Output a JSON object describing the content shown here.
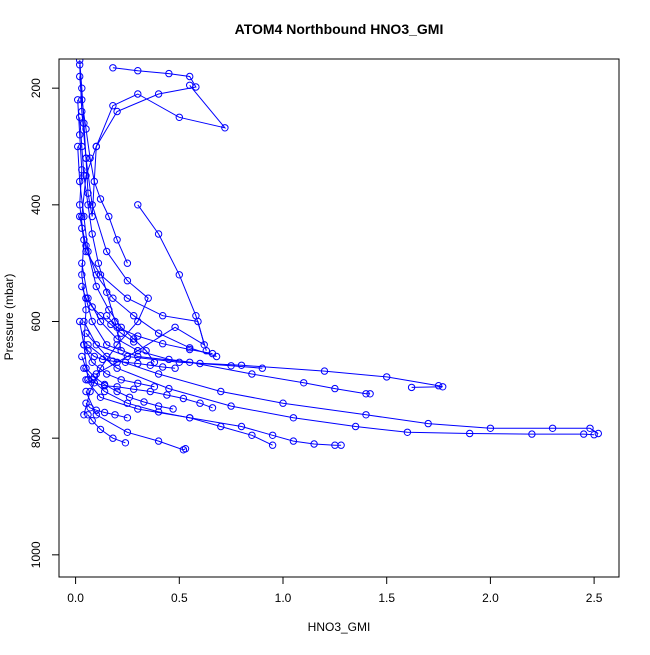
{
  "chart_data": {
    "type": "scatter",
    "title": "ATOM4 Northbound HNO3_GMI",
    "xlabel": "HNO3_GMI",
    "ylabel": "Pressure (mbar)",
    "xlim": [
      -0.08,
      2.62
    ],
    "ylim": [
      1038,
      150
    ],
    "y_reversed": true,
    "x_ticks": [
      "0.0",
      "0.5",
      "1.0",
      "1.5",
      "2.0",
      "2.5"
    ],
    "x_tick_values": [
      0,
      0.5,
      1.0,
      1.5,
      2.0,
      2.5
    ],
    "y_ticks": [
      "200",
      "400",
      "600",
      "800",
      "1000"
    ],
    "y_tick_values": [
      200,
      400,
      600,
      800,
      1000
    ],
    "marker": "open-circle",
    "line_style": "connected",
    "color": "#0000ff",
    "series": [
      {
        "x": [
          0.02,
          0.03,
          0.04,
          0.05,
          0.06,
          0.08,
          0.1,
          0.18,
          0.3,
          0.5,
          0.72,
          0.55
        ],
        "y": [
          152,
          200,
          260,
          320,
          380,
          420,
          300,
          230,
          210,
          250,
          268,
          195
        ]
      },
      {
        "x": [
          0.18,
          0.3,
          0.45,
          0.55,
          0.58,
          0.4,
          0.2,
          0.1,
          0.05,
          0.03
        ],
        "y": [
          165,
          170,
          175,
          180,
          198,
          210,
          240,
          300,
          350,
          420
        ]
      },
      {
        "x": [
          0.03,
          0.05,
          0.12,
          0.25,
          0.42,
          0.59,
          0.62,
          0.48,
          0.3,
          0.2,
          0.1
        ],
        "y": [
          440,
          480,
          520,
          560,
          590,
          600,
          640,
          610,
          650,
          670,
          690
        ]
      },
      {
        "x": [
          0.05,
          0.08,
          0.15,
          0.3,
          0.55,
          0.85,
          1.1,
          1.25,
          1.4,
          1.42
        ],
        "y": [
          560,
          600,
          640,
          660,
          670,
          690,
          705,
          715,
          724,
          724
        ]
      },
      {
        "x": [
          0.04,
          0.1,
          0.25,
          0.5,
          0.8,
          1.2,
          1.5,
          1.75,
          1.77,
          1.62
        ],
        "y": [
          600,
          640,
          660,
          670,
          675,
          685,
          695,
          710,
          712,
          713
        ]
      },
      {
        "x": [
          0.05,
          0.15,
          0.4,
          0.7,
          1.0,
          1.4,
          1.7,
          2.0,
          2.3,
          2.48,
          2.52
        ],
        "y": [
          620,
          660,
          690,
          720,
          740,
          760,
          775,
          783,
          783,
          783,
          792
        ]
      },
      {
        "x": [
          0.06,
          0.2,
          0.45,
          0.75,
          1.05,
          1.35,
          1.6,
          1.9,
          2.2,
          2.45,
          2.5
        ],
        "y": [
          640,
          680,
          715,
          745,
          765,
          780,
          790,
          792,
          793,
          793,
          794
        ]
      },
      {
        "x": [
          0.05,
          0.12,
          0.3,
          0.55,
          0.8,
          0.95,
          1.05,
          1.15,
          1.25,
          1.28
        ],
        "y": [
          700,
          730,
          750,
          765,
          780,
          795,
          805,
          810,
          812,
          812
        ]
      },
      {
        "x": [
          0.05,
          0.1,
          0.25,
          0.4,
          0.52,
          0.53
        ],
        "y": [
          720,
          760,
          790,
          805,
          820,
          818
        ]
      },
      {
        "x": [
          0.04,
          0.08,
          0.14,
          0.25,
          0.4,
          0.55,
          0.7,
          0.85,
          0.95
        ],
        "y": [
          680,
          700,
          720,
          740,
          755,
          765,
          780,
          795,
          812
        ]
      },
      {
        "x": [
          0.02,
          0.03,
          0.05,
          0.08,
          0.15,
          0.25,
          0.35,
          0.3,
          0.2,
          0.12,
          0.07,
          0.04
        ],
        "y": [
          160,
          240,
          320,
          400,
          480,
          530,
          560,
          600,
          640,
          680,
          720,
          760
        ]
      },
      {
        "x": [
          0.01,
          0.02,
          0.04,
          0.06,
          0.1,
          0.16,
          0.22,
          0.28,
          0.34,
          0.38
        ],
        "y": [
          300,
          360,
          420,
          480,
          540,
          580,
          610,
          630,
          650,
          670
        ]
      },
      {
        "x": [
          0.03,
          0.06,
          0.12,
          0.2,
          0.3,
          0.45,
          0.6,
          0.75,
          0.9
        ],
        "y": [
          500,
          560,
          600,
          630,
          650,
          665,
          672,
          676,
          680
        ]
      },
      {
        "x": [
          0.02,
          0.05,
          0.1,
          0.18,
          0.28,
          0.4,
          0.55,
          0.68
        ],
        "y": [
          420,
          470,
          520,
          560,
          590,
          620,
          645,
          660
        ]
      },
      {
        "x": [
          0.02,
          0.03,
          0.05,
          0.07,
          0.09,
          0.12,
          0.16,
          0.2,
          0.25
        ],
        "y": [
          180,
          220,
          270,
          320,
          360,
          390,
          420,
          460,
          500
        ]
      },
      {
        "x": [
          0.04,
          0.06,
          0.09,
          0.13,
          0.18,
          0.24,
          0.3,
          0.36,
          0.42,
          0.48
        ],
        "y": [
          640,
          650,
          660,
          665,
          668,
          670,
          672,
          675,
          678,
          680
        ]
      },
      {
        "x": [
          0.06,
          0.09,
          0.14,
          0.2,
          0.28,
          0.36,
          0.44,
          0.52,
          0.6,
          0.66
        ],
        "y": [
          700,
          705,
          710,
          712,
          716,
          720,
          726,
          732,
          740,
          748
        ]
      },
      {
        "x": [
          0.03,
          0.05,
          0.08,
          0.12,
          0.17,
          0.22,
          0.28
        ],
        "y": [
          540,
          560,
          575,
          590,
          605,
          620,
          635
        ]
      },
      {
        "x": [
          0.01,
          0.02,
          0.03,
          0.02,
          0.04,
          0.03,
          0.05,
          0.04,
          0.06
        ],
        "y": [
          220,
          280,
          340,
          400,
          460,
          520,
          580,
          640,
          700
        ]
      },
      {
        "x": [
          0.02,
          0.04,
          0.08,
          0.15,
          0.22,
          0.3,
          0.38
        ],
        "y": [
          600,
          640,
          670,
          690,
          700,
          706,
          712
        ]
      },
      {
        "x": [
          0.03,
          0.05,
          0.09,
          0.14,
          0.2,
          0.26,
          0.33,
          0.4,
          0.47
        ],
        "y": [
          660,
          680,
          695,
          708,
          720,
          730,
          738,
          745,
          750
        ]
      },
      {
        "x": [
          0.05,
          0.07,
          0.1,
          0.14,
          0.19,
          0.25
        ],
        "y": [
          740,
          748,
          752,
          756,
          760,
          765
        ]
      },
      {
        "x": [
          0.06,
          0.08,
          0.12,
          0.18,
          0.24
        ],
        "y": [
          760,
          770,
          785,
          800,
          808
        ]
      },
      {
        "x": [
          0.02,
          0.03,
          0.04,
          0.06,
          0.08,
          0.11,
          0.15,
          0.19,
          0.22
        ],
        "y": [
          250,
          300,
          350,
          400,
          450,
          500,
          550,
          600,
          650
        ]
      },
      {
        "x": [
          0.15,
          0.2,
          0.3,
          0.42,
          0.55,
          0.66
        ],
        "y": [
          590,
          610,
          625,
          638,
          648,
          655
        ]
      },
      {
        "x": [
          0.3,
          0.4,
          0.5,
          0.58,
          0.63
        ],
        "y": [
          400,
          450,
          520,
          590,
          650
        ]
      }
    ]
  }
}
